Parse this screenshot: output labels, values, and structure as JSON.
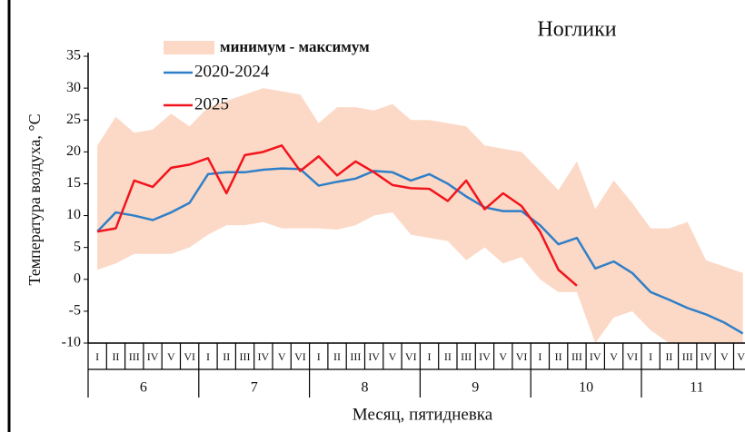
{
  "chart_data": {
    "type": "line",
    "title": "Ноглики",
    "y_label": "Температура воздуха, °С",
    "x_label": "Месяц, пятидневка",
    "categories": [
      "I",
      "II",
      "III",
      "IV",
      "V",
      "VI",
      "I",
      "II",
      "III",
      "IV",
      "V",
      "VI",
      "I",
      "II",
      "III",
      "IV",
      "V",
      "VI",
      "I",
      "II",
      "III",
      "IV",
      "V",
      "VI",
      "I",
      "II",
      "III",
      "IV",
      "V",
      "VI",
      "I",
      "II",
      "III",
      "IV",
      "V",
      "VI"
    ],
    "months": [
      "6",
      "7",
      "8",
      "9",
      "10",
      "11"
    ],
    "ylim": [
      -10,
      35
    ],
    "yticks": [
      -10,
      -5,
      0,
      5,
      10,
      15,
      20,
      25,
      30,
      35
    ],
    "band": {
      "name": "минимум - максимум",
      "color": "#fcd9c6",
      "min": [
        1.5,
        2.5,
        4,
        4,
        4,
        5,
        7,
        8.5,
        8.5,
        9,
        8,
        8,
        8,
        7.8,
        8.5,
        10,
        10.5,
        7,
        6.5,
        6,
        3,
        5,
        2.5,
        3.5,
        0,
        -2,
        -2,
        -10,
        -6,
        -5,
        -8,
        -10,
        -10,
        -10,
        -10,
        -10
      ],
      "max": [
        21,
        25.5,
        23,
        23.5,
        26,
        24,
        27,
        28,
        29,
        30,
        29.5,
        29,
        24.5,
        27,
        27,
        26.5,
        27.5,
        25,
        25,
        24.5,
        24,
        21,
        20.5,
        20,
        17,
        14,
        18.5,
        11,
        15.5,
        12,
        8,
        8,
        9,
        3,
        2,
        1
      ]
    },
    "series": [
      {
        "name": "2020-2024",
        "color": "#2f7fc8",
        "values": [
          7.5,
          10.5,
          10,
          9.3,
          10.5,
          12,
          16.5,
          16.8,
          16.8,
          17.2,
          17.4,
          17.3,
          14.7,
          15.3,
          15.8,
          17,
          16.8,
          15.5,
          16.5,
          15,
          13,
          11.3,
          10.7,
          10.7,
          8.5,
          5.5,
          6.5,
          1.7,
          2.8,
          1,
          -2,
          -3.2,
          -4.5,
          -5.5,
          -6.8,
          -8.5
        ]
      },
      {
        "name": "2025",
        "color": "#f2141c",
        "values": [
          7.5,
          8,
          15.5,
          14.5,
          17.5,
          18,
          19,
          13.5,
          19.5,
          20,
          21,
          17,
          19.3,
          16.3,
          18.5,
          16.8,
          14.8,
          14.3,
          14.2,
          12.3,
          15.5,
          11,
          13.5,
          11.5,
          7.5,
          1.5,
          -1,
          null,
          null,
          null,
          null,
          null,
          null,
          null,
          null,
          null
        ]
      }
    ]
  }
}
